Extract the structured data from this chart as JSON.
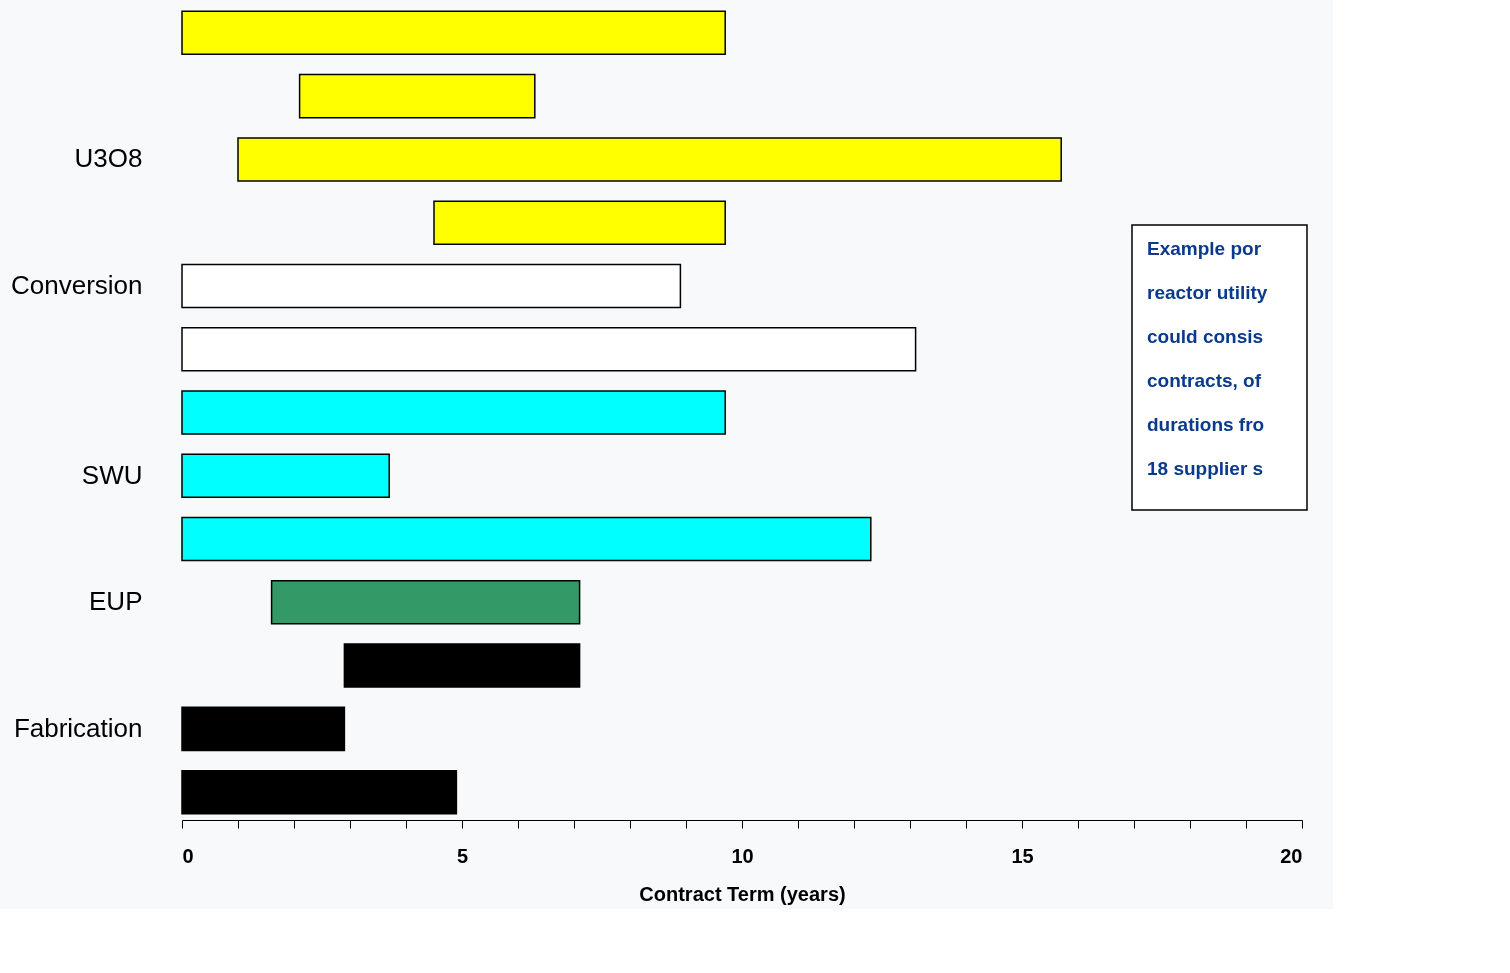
{
  "chart_data": {
    "type": "bar",
    "orientation": "horizontal",
    "xlabel": "Contract Term (years)",
    "categories": [
      null,
      null,
      "U3O8",
      null,
      "Conversion",
      null,
      null,
      "SWU",
      null,
      "EUP",
      null,
      "Fabrication",
      null
    ],
    "base": [
      0,
      2.1,
      1.0,
      4.5,
      0,
      0,
      0,
      0,
      0,
      1.6,
      2.9,
      0,
      0
    ],
    "values": [
      9.7,
      4.2,
      14.7,
      5.2,
      8.9,
      13.1,
      9.7,
      3.7,
      12.3,
      5.5,
      4.2,
      2.9,
      4.9
    ],
    "colors": [
      "#ffff00",
      "#ffff00",
      "#ffff00",
      "#ffff00",
      "#ffffff",
      "#ffffff",
      "#00ffff",
      "#00ffff",
      "#00ffff",
      "#339966",
      "#000000",
      "#000000",
      "#000000"
    ],
    "xlim": [
      0,
      20
    ],
    "xticks": [
      0,
      {
        "value": 1,
        "label": null
      },
      {
        "value": 2,
        "label": null
      },
      {
        "value": 3,
        "label": null
      },
      {
        "value": 4,
        "label": null
      },
      5,
      {
        "value": 6,
        "label": null
      },
      {
        "value": 7,
        "label": null
      },
      {
        "value": 8,
        "label": null
      },
      {
        "value": 9,
        "label": null
      },
      10,
      {
        "value": 11,
        "label": null
      },
      {
        "value": 12,
        "label": null
      },
      {
        "value": 13,
        "label": null
      },
      {
        "value": 14,
        "label": null
      },
      15,
      {
        "value": 16,
        "label": null
      },
      {
        "value": 17,
        "label": null
      },
      {
        "value": 18,
        "label": null
      },
      {
        "value": 19,
        "label": null
      },
      20
    ],
    "grid": false,
    "annotations": [
      "Example por\nreactor utility\ncould  consis\ncontracts, of\ndurations fro\n18 supplier s"
    ]
  }
}
